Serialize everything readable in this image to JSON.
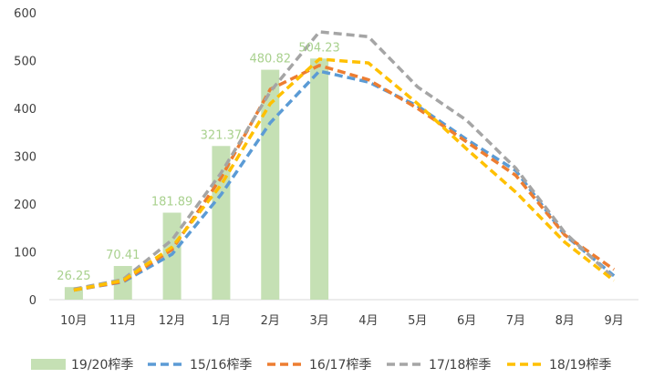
{
  "chart_data": {
    "type": "bar+line",
    "categories": [
      "10月",
      "11月",
      "12月",
      "1月",
      "2月",
      "3月",
      "4月",
      "5月",
      "6月",
      "7月",
      "8月",
      "9月"
    ],
    "ylim": [
      0,
      600
    ],
    "yticks": [
      0,
      100,
      200,
      300,
      400,
      500,
      600
    ],
    "grid": false,
    "legend_position": "bottom",
    "bar_series": {
      "name": "19/20榨季",
      "color": "#c5e0b4",
      "label_color": "#a9d18e",
      "values": [
        26.25,
        70.41,
        181.89,
        321.37,
        480.82,
        504.23
      ],
      "labels": [
        "26.25",
        "70.41",
        "181.89",
        "321.37",
        "480.82",
        "504.23"
      ]
    },
    "series": [
      {
        "name": "15/16榨季",
        "color": "#5b9bd5",
        "values": [
          20,
          37,
          95,
          220,
          370,
          478,
          455,
          405,
          335,
          270,
          135,
          50
        ]
      },
      {
        "name": "16/17榨季",
        "color": "#ed7d31",
        "values": [
          20,
          38,
          105,
          255,
          440,
          490,
          460,
          400,
          330,
          260,
          135,
          63
        ]
      },
      {
        "name": "17/18榨季",
        "color": "#a5a5a5",
        "values": [
          22,
          42,
          125,
          265,
          435,
          560,
          550,
          445,
          375,
          275,
          140,
          45
        ]
      },
      {
        "name": "18/19榨季",
        "color": "#ffc000",
        "values": [
          20,
          40,
          110,
          240,
          410,
          503,
          495,
          410,
          315,
          225,
          120,
          40
        ]
      }
    ]
  }
}
